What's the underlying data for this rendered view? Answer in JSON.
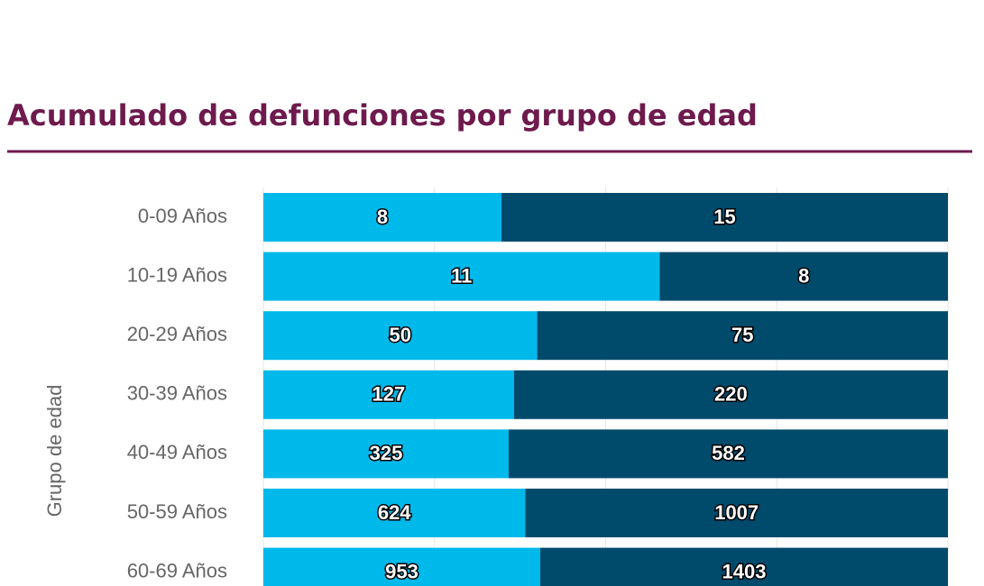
{
  "chart_data": {
    "type": "stacked-bar-percent",
    "title": "Acumulado de defunciones por grupo de edad",
    "y_label": "Grupo de edad",
    "categories": [
      "0-09 Años",
      "10-19 Años",
      "20-29 Años",
      "30-39 Años",
      "40-49 Años",
      "50-59 Años",
      "60-69 Años"
    ],
    "series": [
      {
        "color": "#00b9eb",
        "values": [
          8,
          11,
          50,
          127,
          325,
          624,
          953
        ]
      },
      {
        "color": "#004a6b",
        "values": [
          15,
          8,
          75,
          220,
          582,
          1007,
          1403
        ]
      }
    ],
    "xlim": [
      0,
      100
    ],
    "xticks": [
      0,
      25,
      50,
      75,
      100
    ],
    "grid": true
  }
}
